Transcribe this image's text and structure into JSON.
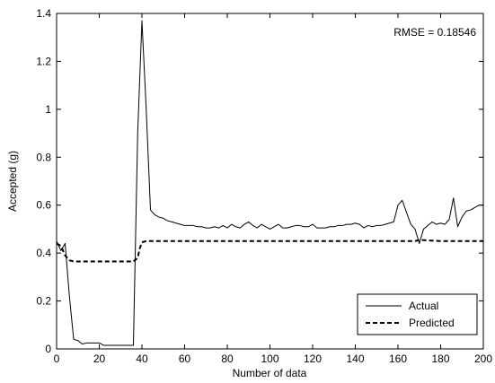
{
  "chart_data": {
    "type": "line",
    "xlabel": "Number of data",
    "ylabel": "Accepted (g)",
    "xlim": [
      0,
      200
    ],
    "ylim": [
      0,
      1.4
    ],
    "xticks": [
      0,
      20,
      40,
      60,
      80,
      100,
      120,
      140,
      160,
      180,
      200
    ],
    "yticks": [
      0,
      0.2,
      0.4,
      0.6,
      0.8,
      1,
      1.2,
      1.4
    ],
    "xtick_labels": [
      "0",
      "20",
      "40",
      "60",
      "80",
      "100",
      "120",
      "140",
      "160",
      "180",
      "200"
    ],
    "ytick_labels": [
      "0",
      "0.2",
      "0.4",
      "0.6",
      "0.8",
      "1",
      "1.2",
      "1.4"
    ],
    "grid": false,
    "legend_position": "bottom-right",
    "annotation": "RMSE = 0.18546",
    "series": [
      {
        "name": "Actual",
        "style": "solid",
        "color": "#000000",
        "x": [
          0,
          2,
          4,
          6,
          8,
          10,
          12,
          14,
          16,
          18,
          20,
          22,
          24,
          26,
          28,
          30,
          32,
          34,
          36,
          38,
          40,
          42,
          44,
          46,
          48,
          50,
          52,
          54,
          56,
          58,
          60,
          62,
          64,
          66,
          68,
          70,
          72,
          74,
          76,
          78,
          80,
          82,
          84,
          86,
          88,
          90,
          92,
          94,
          96,
          98,
          100,
          102,
          104,
          106,
          108,
          110,
          112,
          114,
          116,
          118,
          120,
          122,
          124,
          126,
          128,
          130,
          132,
          134,
          136,
          138,
          140,
          142,
          144,
          146,
          148,
          150,
          152,
          154,
          156,
          158,
          160,
          162,
          164,
          166,
          168,
          170,
          172,
          174,
          176,
          178,
          180,
          182,
          184,
          186,
          188,
          190,
          192,
          194,
          196,
          198,
          200
        ],
        "values": [
          0.45,
          0.41,
          0.44,
          0.22,
          0.04,
          0.035,
          0.02,
          0.025,
          0.025,
          0.025,
          0.025,
          0.015,
          0.015,
          0.015,
          0.015,
          0.015,
          0.015,
          0.015,
          0.015,
          0.9,
          1.37,
          1.0,
          0.58,
          0.56,
          0.55,
          0.545,
          0.535,
          0.53,
          0.525,
          0.52,
          0.515,
          0.515,
          0.515,
          0.51,
          0.51,
          0.505,
          0.505,
          0.51,
          0.505,
          0.515,
          0.505,
          0.52,
          0.51,
          0.505,
          0.52,
          0.53,
          0.515,
          0.505,
          0.52,
          0.51,
          0.5,
          0.51,
          0.52,
          0.505,
          0.505,
          0.51,
          0.515,
          0.515,
          0.51,
          0.51,
          0.52,
          0.505,
          0.505,
          0.505,
          0.51,
          0.51,
          0.515,
          0.515,
          0.52,
          0.52,
          0.525,
          0.52,
          0.505,
          0.515,
          0.51,
          0.515,
          0.515,
          0.52,
          0.525,
          0.53,
          0.6,
          0.62,
          0.57,
          0.52,
          0.5,
          0.44,
          0.5,
          0.515,
          0.53,
          0.52,
          0.525,
          0.52,
          0.54,
          0.63,
          0.51,
          0.55,
          0.575,
          0.58,
          0.59,
          0.6,
          0.6
        ]
      },
      {
        "name": "Predicted",
        "style": "dashed",
        "color": "#000000",
        "x": [
          0,
          2,
          4,
          6,
          8,
          10,
          20,
          30,
          34,
          36,
          38,
          39,
          40,
          42,
          50,
          60,
          80,
          100,
          120,
          140,
          160,
          164,
          168,
          170,
          180,
          200
        ],
        "values": [
          0.44,
          0.43,
          0.39,
          0.37,
          0.365,
          0.365,
          0.365,
          0.365,
          0.365,
          0.365,
          0.38,
          0.42,
          0.445,
          0.45,
          0.45,
          0.45,
          0.45,
          0.45,
          0.45,
          0.45,
          0.45,
          0.45,
          0.45,
          0.455,
          0.45,
          0.45
        ]
      }
    ]
  }
}
